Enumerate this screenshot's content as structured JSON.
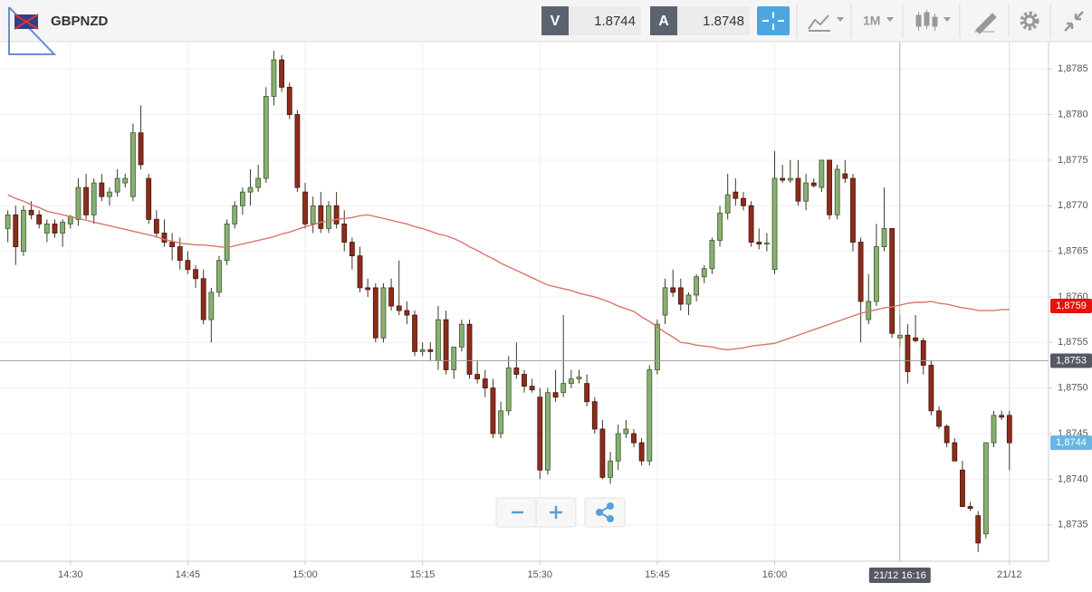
{
  "toolbar": {
    "symbol": "GBPNZD",
    "sell_label": "V",
    "sell_price": "1.8744",
    "buy_label": "A",
    "buy_price": "1.8748",
    "timeframe": "1M"
  },
  "chart_data": {
    "type": "candlestick",
    "x": [
      "14:22",
      "14:23",
      "14:24",
      "14:25",
      "14:26",
      "14:27",
      "14:28",
      "14:29",
      "14:30",
      "14:31",
      "14:32",
      "14:33",
      "14:34",
      "14:35",
      "14:36",
      "14:37",
      "14:38",
      "14:39",
      "14:40",
      "14:41",
      "14:42",
      "14:43",
      "14:44",
      "14:45",
      "14:46",
      "14:47",
      "14:48",
      "14:49",
      "14:50",
      "14:51",
      "14:52",
      "14:53",
      "14:54",
      "14:55",
      "14:56",
      "14:57",
      "14:58",
      "14:59",
      "15:00",
      "15:01",
      "15:02",
      "15:03",
      "15:04",
      "15:05",
      "15:06",
      "15:07",
      "15:08",
      "15:09",
      "15:10",
      "15:11",
      "15:12",
      "15:13",
      "15:14",
      "15:15",
      "15:16",
      "15:17",
      "15:18",
      "15:19",
      "15:20",
      "15:21",
      "15:22",
      "15:23",
      "15:24",
      "15:25",
      "15:26",
      "15:27",
      "15:28",
      "15:29",
      "15:30",
      "15:31",
      "15:32",
      "15:33",
      "15:34",
      "15:35",
      "15:36",
      "15:37",
      "15:38",
      "15:39",
      "15:40",
      "15:41",
      "15:42",
      "15:43",
      "15:44",
      "15:45",
      "15:46",
      "15:47",
      "15:48",
      "15:49",
      "15:50",
      "15:51",
      "15:52",
      "15:53",
      "15:54",
      "15:55",
      "15:56",
      "15:57",
      "15:58",
      "15:59",
      "16:00",
      "16:01",
      "16:02",
      "16:03",
      "16:04",
      "16:05",
      "16:06",
      "16:07",
      "16:08",
      "16:09",
      "16:10",
      "16:11",
      "16:12",
      "16:13",
      "16:14",
      "16:15",
      "16:16",
      "16:17",
      "16:18",
      "16:19",
      "16:20",
      "16:21",
      "16:22",
      "16:23",
      "16:24",
      "16:25",
      "16:26",
      "16:27",
      "16:28",
      "16:29",
      "16:30"
    ],
    "open": [
      1.87675,
      1.8769,
      1.8765,
      1.87695,
      1.8769,
      1.8767,
      1.8768,
      1.8767,
      1.8768,
      1.87685,
      1.8772,
      1.8769,
      1.87725,
      1.8771,
      1.87715,
      1.87725,
      1.8771,
      1.8778,
      1.8773,
      1.87685,
      1.8767,
      1.8766,
      1.87655,
      1.8764,
      1.8763,
      1.8762,
      1.87575,
      1.87605,
      1.8764,
      1.8768,
      1.877,
      1.87715,
      1.8772,
      1.8773,
      1.8782,
      1.8786,
      1.8783,
      1.878,
      1.87715,
      1.8768,
      1.877,
      1.87675,
      1.877,
      1.8768,
      1.8766,
      1.87645,
      1.8761,
      1.8761,
      1.87555,
      1.8761,
      1.8759,
      1.87585,
      1.8758,
      1.8754,
      1.87542,
      1.8753,
      1.87575,
      1.8752,
      1.87545,
      1.8757,
      1.87515,
      1.8751,
      1.875,
      1.8745,
      1.87475,
      1.87522,
      1.87515,
      1.87502,
      1.8749,
      1.8741,
      1.87495,
      1.87495,
      1.87505,
      1.8751,
      1.87505,
      1.87485,
      1.87455,
      1.87402,
      1.8742,
      1.8745,
      1.8745,
      1.8744,
      1.8742,
      1.8752,
      1.8758,
      1.8761,
      1.8761,
      1.87592,
      1.87602,
      1.87622,
      1.87631,
      1.87662,
      1.87692,
      1.87715,
      1.87708,
      1.877,
      1.8766,
      1.87658,
      1.8763,
      1.8773,
      1.87728,
      1.8773,
      1.87705,
      1.87725,
      1.8772,
      1.8775,
      1.8769,
      1.87735,
      1.8773,
      1.8766,
      1.87575,
      1.87595,
      1.87655,
      1.87675,
      1.87555,
      1.87558,
      1.87555,
      1.87552,
      1.87525,
      1.87475,
      1.87458,
      1.8744,
      1.8741,
      1.8737,
      1.8736,
      1.8734,
      1.8744,
      1.8747,
      1.8747
    ],
    "high": [
      1.87695,
      1.877,
      1.877,
      1.87705,
      1.87695,
      1.87685,
      1.87685,
      1.87685,
      1.8769,
      1.8773,
      1.87735,
      1.8773,
      1.87735,
      1.8772,
      1.8774,
      1.87735,
      1.8779,
      1.8781,
      1.87735,
      1.87695,
      1.87685,
      1.8767,
      1.87665,
      1.8765,
      1.87635,
      1.8763,
      1.8761,
      1.87645,
      1.87685,
      1.87705,
      1.8772,
      1.8774,
      1.87745,
      1.8783,
      1.8787,
      1.87865,
      1.87835,
      1.87805,
      1.87725,
      1.8771,
      1.87715,
      1.87705,
      1.87715,
      1.87695,
      1.87665,
      1.87655,
      1.8762,
      1.87615,
      1.87615,
      1.8762,
      1.8764,
      1.87595,
      1.87585,
      1.8755,
      1.8755,
      1.8759,
      1.87585,
      1.87545,
      1.87575,
      1.87575,
      1.8753,
      1.8752,
      1.8751,
      1.87485,
      1.87535,
      1.8755,
      1.8752,
      1.8751,
      1.875,
      1.875,
      1.8752,
      1.8758,
      1.8752,
      1.8752,
      1.87515,
      1.8749,
      1.87465,
      1.8743,
      1.8746,
      1.87465,
      1.87455,
      1.87445,
      1.87525,
      1.87575,
      1.8762,
      1.8763,
      1.8762,
      1.87605,
      1.87625,
      1.87635,
      1.87665,
      1.877,
      1.87735,
      1.8773,
      1.87715,
      1.87705,
      1.87675,
      1.8767,
      1.8776,
      1.87745,
      1.8775,
      1.8775,
      1.87735,
      1.8773,
      1.8775,
      1.8775,
      1.87745,
      1.8775,
      1.87735,
      1.87665,
      1.87625,
      1.8768,
      1.8772,
      1.87675,
      1.8758,
      1.8757,
      1.8758,
      1.87555,
      1.8753,
      1.8748,
      1.8746,
      1.87445,
      1.8742,
      1.87375,
      1.87365,
      1.8744,
      1.87475,
      1.87475,
      1.87475
    ],
    "low": [
      1.8766,
      1.87635,
      1.87645,
      1.87685,
      1.87675,
      1.8766,
      1.87665,
      1.87655,
      1.87675,
      1.87678,
      1.87685,
      1.8768,
      1.87705,
      1.877,
      1.8771,
      1.8772,
      1.87705,
      1.8774,
      1.8768,
      1.87665,
      1.87655,
      1.8764,
      1.8763,
      1.87625,
      1.8761,
      1.8757,
      1.8755,
      1.876,
      1.87635,
      1.87675,
      1.8769,
      1.877,
      1.87715,
      1.87725,
      1.8781,
      1.87825,
      1.87795,
      1.87715,
      1.87675,
      1.8767,
      1.8767,
      1.8767,
      1.87675,
      1.8765,
      1.8763,
      1.87605,
      1.876,
      1.8755,
      1.8755,
      1.87585,
      1.8758,
      1.8757,
      1.87535,
      1.87535,
      1.8753,
      1.8752,
      1.87515,
      1.8751,
      1.8754,
      1.8751,
      1.87505,
      1.8749,
      1.87445,
      1.87445,
      1.8747,
      1.8751,
      1.87495,
      1.87495,
      1.874,
      1.87405,
      1.87485,
      1.8749,
      1.875,
      1.87505,
      1.8748,
      1.8745,
      1.874,
      1.87395,
      1.8741,
      1.87445,
      1.87435,
      1.87415,
      1.87415,
      1.87515,
      1.8757,
      1.876,
      1.87585,
      1.8758,
      1.87595,
      1.87615,
      1.87625,
      1.87655,
      1.87685,
      1.877,
      1.87695,
      1.87655,
      1.87652,
      1.8765,
      1.87625,
      1.87725,
      1.87725,
      1.877,
      1.87695,
      1.8772,
      1.87715,
      1.87685,
      1.87685,
      1.87725,
      1.8765,
      1.8755,
      1.8757,
      1.8759,
      1.8765,
      1.87555,
      1.87545,
      1.87505,
      1.8755,
      1.87515,
      1.8747,
      1.87455,
      1.87435,
      1.8742,
      1.8737,
      1.87365,
      1.8732,
      1.87335,
      1.87435,
      1.87465,
      1.8741
    ],
    "close": [
      1.8769,
      1.87655,
      1.87695,
      1.8769,
      1.8768,
      1.8768,
      1.8767,
      1.87682,
      1.87688,
      1.8772,
      1.8769,
      1.87725,
      1.8771,
      1.87715,
      1.8773,
      1.8773,
      1.8778,
      1.87745,
      1.87685,
      1.8767,
      1.8766,
      1.87655,
      1.8764,
      1.8763,
      1.8762,
      1.87575,
      1.87605,
      1.8764,
      1.8768,
      1.877,
      1.87715,
      1.8772,
      1.8773,
      1.8782,
      1.8786,
      1.8783,
      1.878,
      1.8772,
      1.8768,
      1.877,
      1.87675,
      1.877,
      1.8768,
      1.8766,
      1.87645,
      1.8761,
      1.87608,
      1.87555,
      1.8761,
      1.8759,
      1.87585,
      1.8758,
      1.8754,
      1.87542,
      1.8754,
      1.87575,
      1.8752,
      1.87545,
      1.8757,
      1.87515,
      1.8751,
      1.875,
      1.8745,
      1.87475,
      1.87522,
      1.87515,
      1.87502,
      1.87498,
      1.8741,
      1.87495,
      1.8749,
      1.87505,
      1.8751,
      1.87512,
      1.87485,
      1.87455,
      1.87402,
      1.8742,
      1.8745,
      1.87455,
      1.8744,
      1.8742,
      1.8752,
      1.8757,
      1.8761,
      1.87605,
      1.87592,
      1.87602,
      1.87622,
      1.87631,
      1.87662,
      1.87692,
      1.87712,
      1.87708,
      1.877,
      1.8766,
      1.87658,
      1.87659,
      1.8773,
      1.87728,
      1.8773,
      1.87705,
      1.87725,
      1.87722,
      1.8775,
      1.8769,
      1.8774,
      1.8773,
      1.8766,
      1.87595,
      1.87595,
      1.87655,
      1.87675,
      1.8756,
      1.87558,
      1.87518,
      1.87552,
      1.87525,
      1.87475,
      1.87458,
      1.8744,
      1.8742,
      1.8737,
      1.87368,
      1.8733,
      1.8744,
      1.8747,
      1.87468,
      1.8744
    ],
    "up_color": "#8aaf72",
    "down_color": "#8c2d1c",
    "ma": {
      "color": "#d9756c",
      "values": [
        1.87712,
        1.87708,
        1.87705,
        1.87701,
        1.87698,
        1.87694,
        1.87692,
        1.8769,
        1.87688,
        1.87686,
        1.87684,
        1.87682,
        1.8768,
        1.87678,
        1.87676,
        1.87674,
        1.87672,
        1.8767,
        1.87668,
        1.87666,
        1.87663,
        1.87661,
        1.87659,
        1.87658,
        1.87657,
        1.87657,
        1.87656,
        1.87655,
        1.87654,
        1.87656,
        1.87658,
        1.8766,
        1.87662,
        1.87664,
        1.87666,
        1.87669,
        1.87671,
        1.87674,
        1.87677,
        1.87679,
        1.87682,
        1.87683,
        1.87685,
        1.87686,
        1.87687,
        1.87689,
        1.8769,
        1.87688,
        1.87686,
        1.87684,
        1.87682,
        1.8768,
        1.87677,
        1.87675,
        1.87672,
        1.87669,
        1.87667,
        1.87664,
        1.8766,
        1.87655,
        1.87651,
        1.87646,
        1.87642,
        1.87637,
        1.87633,
        1.87629,
        1.87625,
        1.87621,
        1.87617,
        1.87613,
        1.87611,
        1.87609,
        1.87607,
        1.87604,
        1.87602,
        1.876,
        1.87597,
        1.87594,
        1.8759,
        1.87587,
        1.87584,
        1.87578,
        1.87573,
        1.87567,
        1.87561,
        1.87556,
        1.8755,
        1.87549,
        1.87547,
        1.87546,
        1.87545,
        1.87543,
        1.87542,
        1.87543,
        1.87544,
        1.87546,
        1.87547,
        1.87548,
        1.87549,
        1.87552,
        1.87555,
        1.87558,
        1.87561,
        1.87564,
        1.87567,
        1.8757,
        1.87573,
        1.87576,
        1.87579,
        1.87582,
        1.87584,
        1.87586,
        1.87588,
        1.87589,
        1.87591,
        1.87593,
        1.87594,
        1.87594,
        1.87595,
        1.87593,
        1.87592,
        1.8759,
        1.87588,
        1.87587,
        1.87585,
        1.87585,
        1.87585,
        1.87586,
        1.87586
      ]
    },
    "xlim": [
      "14:21",
      "16:35"
    ],
    "xticks": [
      "14:30",
      "14:45",
      "15:00",
      "15:15",
      "15:30",
      "15:45",
      "16:00",
      {
        "value": "16:30",
        "label": "21/12"
      }
    ],
    "ylim": [
      1.8731,
      1.8788
    ],
    "yticks": [
      {
        "value": 1.8735,
        "label": "1,8735"
      },
      {
        "value": 1.874,
        "label": "1,8740"
      },
      {
        "value": 1.8745,
        "label": "1,8745"
      },
      {
        "value": 1.875,
        "label": "1,8750"
      },
      {
        "value": 1.8755,
        "label": "1,8755"
      },
      {
        "value": 1.876,
        "label": "1,8760"
      },
      {
        "value": 1.8765,
        "label": "1,8765"
      },
      {
        "value": 1.877,
        "label": "1,8770"
      },
      {
        "value": 1.8775,
        "label": "1,8775"
      },
      {
        "value": 1.878,
        "label": "1,8780"
      },
      {
        "value": 1.8785,
        "label": "1,8785"
      }
    ],
    "grid": true,
    "price_labels": [
      {
        "value": 1.8759,
        "label": "1,8759",
        "color": "#e8120c"
      },
      {
        "value": 1.8744,
        "label": "1,8744",
        "color": "#67b6e3"
      }
    ],
    "crosshair": {
      "x": "16:16",
      "x_label": "21/12 16:16",
      "y": 1.8753,
      "y_label": "1,8753",
      "color": "#555a62"
    }
  }
}
